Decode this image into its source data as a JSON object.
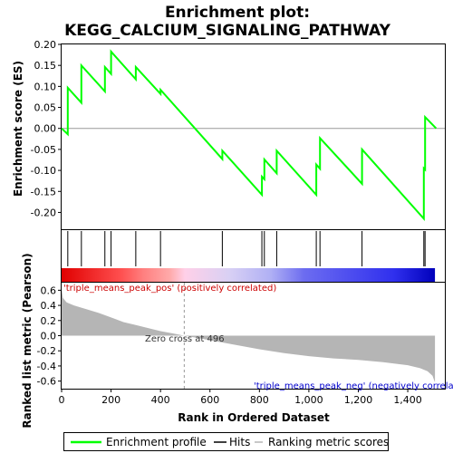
{
  "chart_data": {
    "type": "line",
    "title_line1": "Enrichment plot:",
    "title_line2": "KEGG_CALCIUM_SIGNALING_PATHWAY",
    "ylabel_top": "Enrichment score (ES)",
    "ylabel_bottom": "Ranked list metric (Pearson)",
    "xlabel": "Rank in Ordered Dataset",
    "x_range": [
      0,
      1550
    ],
    "x_ticks": [
      0,
      200,
      400,
      600,
      800,
      1000,
      1200,
      1400
    ],
    "x_tick_labels": [
      "0",
      "200",
      "400",
      "600",
      "800",
      "1,000",
      "1,200",
      "1,400"
    ],
    "es_range": [
      -0.24,
      0.2
    ],
    "es_ticks": [
      0.2,
      0.15,
      0.1,
      0.05,
      0.0,
      -0.05,
      -0.1,
      -0.15,
      -0.2
    ],
    "es_tick_labels": [
      "0.20",
      "0.15",
      "0.10",
      "0.05",
      "0.00",
      "-0.05",
      "-0.10",
      "-0.15",
      "-0.20"
    ],
    "metric_range": [
      -0.7,
      0.7
    ],
    "metric_ticks": [
      0.6,
      0.4,
      0.2,
      0.0,
      -0.2,
      -0.4,
      -0.6
    ],
    "metric_tick_labels": [
      "0.6",
      "0.4",
      "0.2",
      "0.0",
      "-0.2",
      "-0.4",
      "-0.6"
    ],
    "total_genes": 1510,
    "hits": [
      25,
      80,
      175,
      200,
      300,
      400,
      650,
      810,
      820,
      870,
      1030,
      1045,
      1215,
      1465,
      1470
    ],
    "enrichment_profile": {
      "x": [
        0,
        25,
        25,
        80,
        80,
        175,
        175,
        200,
        200,
        300,
        300,
        400,
        400,
        650,
        650,
        810,
        810,
        820,
        820,
        870,
        870,
        1030,
        1030,
        1045,
        1045,
        1215,
        1215,
        1465,
        1465,
        1470,
        1470,
        1515
      ],
      "y": [
        0.0,
        -0.014,
        0.097,
        0.061,
        0.15,
        0.088,
        0.146,
        0.13,
        0.183,
        0.117,
        0.146,
        0.082,
        0.092,
        -0.073,
        -0.053,
        -0.158,
        -0.115,
        -0.121,
        -0.074,
        -0.107,
        -0.053,
        -0.158,
        -0.086,
        -0.096,
        -0.023,
        -0.132,
        -0.05,
        -0.215,
        -0.095,
        -0.098,
        0.027,
        0.0
      ]
    },
    "ranked_metric": {
      "x": [
        0,
        5,
        20,
        50,
        100,
        150,
        200,
        250,
        300,
        350,
        400,
        450,
        496,
        550,
        600,
        700,
        800,
        900,
        1000,
        1100,
        1200,
        1300,
        1400,
        1450,
        1480,
        1500,
        1510
      ],
      "y": [
        0.62,
        0.5,
        0.44,
        0.4,
        0.35,
        0.3,
        0.24,
        0.18,
        0.14,
        0.1,
        0.06,
        0.03,
        0.0,
        -0.03,
        -0.06,
        -0.12,
        -0.18,
        -0.23,
        -0.27,
        -0.3,
        -0.32,
        -0.35,
        -0.39,
        -0.43,
        -0.47,
        -0.53,
        -0.62
      ]
    },
    "zero_cross_rank": 496,
    "annotations": {
      "pos": "'triple_means_peak_pos' (positively correlated)",
      "neg": "'triple_means_peak_neg' (negatively correlated)",
      "zero": "Zero cross at 496"
    },
    "legend": {
      "position": "bottom",
      "items": [
        "Enrichment profile",
        "Hits",
        "Ranking metric scores"
      ]
    },
    "colors": {
      "profile": "#00ff00",
      "hits": "#000000",
      "metric": "#b5b5b5",
      "pos_text": "#cc0000",
      "neg_text": "#0000cc",
      "zero_line": "#999999"
    },
    "heatmap_stops": [
      [
        0.0,
        "#e00000"
      ],
      [
        0.16,
        "#ff5050"
      ],
      [
        0.22,
        "#ff8080"
      ],
      [
        0.29,
        "#ffaaaa"
      ],
      [
        0.33,
        "#ffd0e8"
      ],
      [
        0.45,
        "#d8d0f4"
      ],
      [
        0.56,
        "#b0b0f4"
      ],
      [
        0.65,
        "#6c6cf0"
      ],
      [
        0.89,
        "#3030ee"
      ],
      [
        1.0,
        "#0000bb"
      ]
    ]
  }
}
